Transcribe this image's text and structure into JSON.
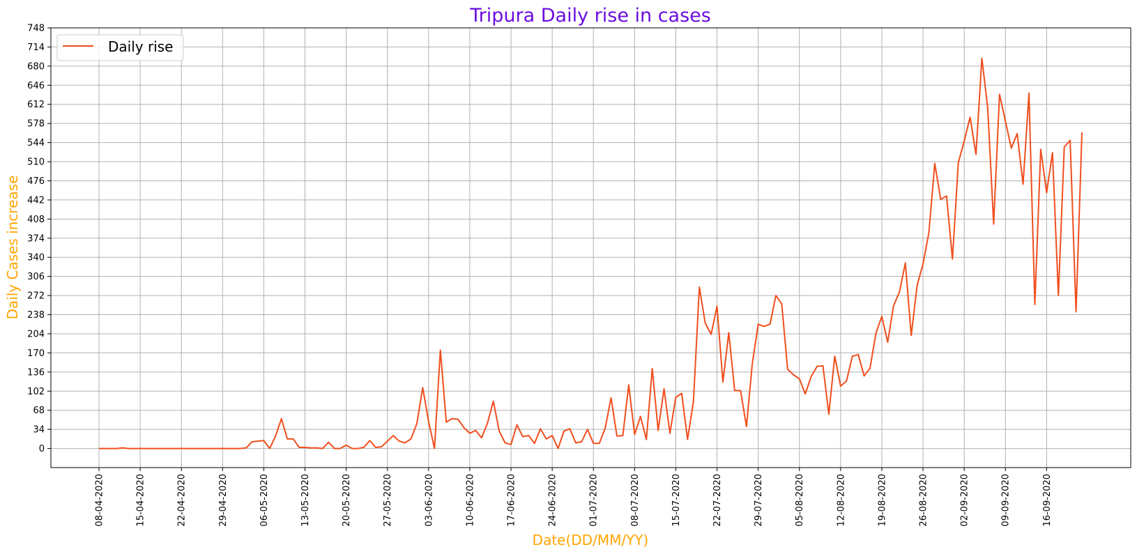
{
  "chart_data": {
    "type": "line",
    "title": "Tripura Daily rise in cases",
    "xlabel": "Date(DD/MM/YY)",
    "ylabel": "Daily Cases increase",
    "ylim": [
      -34,
      748
    ],
    "yticks": [
      0,
      34,
      68,
      102,
      136,
      170,
      204,
      238,
      272,
      306,
      340,
      374,
      408,
      442,
      476,
      510,
      544,
      578,
      612,
      646,
      680,
      714,
      748
    ],
    "x_start": "08-04-2020",
    "xticks": [
      "08-04-2020",
      "15-04-2020",
      "22-04-2020",
      "29-04-2020",
      "06-05-2020",
      "13-05-2020",
      "20-05-2020",
      "27-05-2020",
      "03-06-2020",
      "10-06-2020",
      "17-06-2020",
      "24-06-2020",
      "01-07-2020",
      "08-07-2020",
      "15-07-2020",
      "22-07-2020",
      "29-07-2020",
      "05-08-2020",
      "12-08-2020",
      "19-08-2020",
      "26-08-2020",
      "02-09-2020",
      "09-09-2020",
      "16-09-2020"
    ],
    "grid": true,
    "legend_position": "upper-left",
    "colors": {
      "title": "#6a0dde",
      "axis_labels": "#ffa500",
      "series": "#f04e1d",
      "grid": "#b0b0b0"
    },
    "series": [
      {
        "name": "Daily rise",
        "values": [
          0,
          0,
          0,
          0,
          1,
          0,
          0,
          0,
          0,
          0,
          0,
          0,
          0,
          0,
          0,
          0,
          0,
          0,
          0,
          0,
          0,
          0,
          0,
          0,
          0,
          1,
          12,
          13,
          14,
          0,
          22,
          53,
          17,
          17,
          2,
          2,
          1,
          1,
          0,
          11,
          0,
          0,
          6,
          0,
          0,
          2,
          14,
          2,
          3,
          13,
          23,
          13,
          10,
          17,
          44,
          108,
          48,
          0,
          175,
          47,
          53,
          52,
          37,
          27,
          32,
          19,
          45,
          84,
          31,
          10,
          7,
          42,
          21,
          23,
          9,
          35,
          17,
          23,
          0,
          31,
          35,
          10,
          12,
          34,
          9,
          9,
          36,
          90,
          22,
          23,
          113,
          25,
          57,
          16,
          142,
          32,
          106,
          27,
          91,
          98,
          16,
          84,
          287,
          223,
          203,
          253,
          118,
          206,
          103,
          103,
          39,
          151,
          221,
          217,
          221,
          272,
          257,
          141,
          131,
          124,
          97,
          128,
          146,
          147,
          61,
          164,
          111,
          120,
          164,
          167,
          129,
          143,
          205,
          235,
          189,
          254,
          278,
          330,
          201,
          290,
          328,
          384,
          507,
          443,
          449,
          337,
          508,
          547,
          589,
          523,
          694,
          605,
          399,
          630,
          582,
          534,
          560,
          470,
          632,
          256,
          532,
          455,
          526,
          272,
          536,
          548,
          243,
          562
        ]
      }
    ]
  }
}
